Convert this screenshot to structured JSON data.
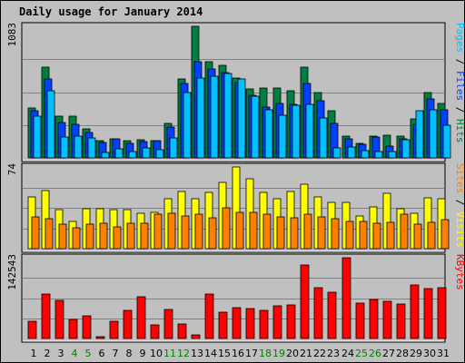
{
  "chart_data": {
    "title": "Daily usage for January 2014",
    "type": "bar",
    "categories": [
      "1",
      "2",
      "3",
      "4",
      "5",
      "6",
      "7",
      "8",
      "9",
      "10",
      "11",
      "12",
      "13",
      "14",
      "15",
      "16",
      "17",
      "18",
      "19",
      "20",
      "21",
      "22",
      "23",
      "24",
      "25",
      "26",
      "27",
      "28",
      "29",
      "30",
      "31"
    ],
    "weekend_days": [
      "4",
      "5",
      "11",
      "12",
      "18",
      "19",
      "25",
      "26"
    ],
    "panels": [
      {
        "id": "hits-files-pages",
        "max_label": "1083",
        "ymax": 1083,
        "right_labels": [
          {
            "text": "Pages",
            "color": "#00c0ff"
          },
          {
            "text": " / ",
            "color": "#000000"
          },
          {
            "text": "Files",
            "color": "#0040ff"
          },
          {
            "text": " / ",
            "color": "#000000"
          },
          {
            "text": "Hits",
            "color": "#008040"
          }
        ],
        "series": [
          {
            "name": "Hits",
            "color": "#008040",
            "values": [
              410,
              745,
              340,
              340,
              240,
              140,
              160,
              140,
              150,
              140,
              285,
              650,
              1083,
              790,
              760,
              660,
              565,
              575,
              575,
              555,
              745,
              540,
              390,
              180,
              120,
              180,
              190,
              180,
              320,
              540,
              445
            ]
          },
          {
            "name": "Files",
            "color": "#0040ff",
            "values": [
              385,
              650,
              290,
              280,
              210,
              130,
              155,
              120,
              135,
              140,
              255,
              610,
              790,
              730,
              700,
              620,
              515,
              415,
              445,
              440,
              615,
              470,
              285,
              160,
              110,
              170,
              95,
              160,
              275,
              485,
              395
            ]
          },
          {
            "name": "Pages",
            "color": "#00c0ff",
            "values": [
              345,
              555,
              175,
              180,
              165,
              45,
              75,
              50,
              80,
              70,
              165,
              540,
              655,
              670,
              695,
              650,
              505,
              395,
              350,
              430,
              440,
              330,
              80,
              90,
              60,
              55,
              50,
              150,
              390,
              395,
              270
            ]
          }
        ]
      },
      {
        "id": "visits-sites",
        "max_label": "74",
        "ymax": 74,
        "right_labels": [
          {
            "text": "Sites",
            "color": "#ff8000"
          },
          {
            "text": " / ",
            "color": "#000000"
          },
          {
            "text": "Visits",
            "color": "#ffff00"
          }
        ],
        "series": [
          {
            "name": "Visits",
            "color": "#ffff00",
            "values": [
              47,
              53,
              35,
              25,
              36,
              36,
              35,
              35,
              32,
              33,
              45,
              52,
              45,
              51,
              60,
              74,
              63,
              51,
              45,
              52,
              58,
              47,
              42,
              42,
              30,
              38,
              50,
              36,
              32,
              46,
              45
            ]
          },
          {
            "name": "Sites",
            "color": "#ff8000",
            "values": [
              29,
              27,
              22,
              19,
              22,
              23,
              20,
              23,
              23,
              31,
              32,
              30,
              31,
              28,
              37,
              33,
              33,
              31,
              29,
              28,
              31,
              29,
              27,
              25,
              25,
              23,
              24,
              31,
              22,
              24,
              26
            ]
          }
        ]
      },
      {
        "id": "kbytes",
        "max_label": "142543",
        "ymax": 142543,
        "right_labels": [
          {
            "text": "KBytes",
            "color": "#ff0000"
          }
        ],
        "series": [
          {
            "name": "KBytes",
            "color": "#ff0000",
            "values": [
              30000,
              78000,
              68000,
              34000,
              40000,
              4000,
              30000,
              50000,
              73000,
              24000,
              51000,
              25000,
              6500,
              78000,
              46000,
              54000,
              53000,
              50000,
              57000,
              60000,
              129000,
              90000,
              81000,
              142543,
              63000,
              69000,
              65000,
              61000,
              94000,
              88000,
              90000
            ]
          }
        ]
      }
    ]
  },
  "colors": {
    "background": "#c0c0c0",
    "panel_bg": "#c0c0c0",
    "grid": "#808080",
    "title": "#0000a0",
    "weekday_label": "#000000",
    "weekend_label": "#008000"
  }
}
